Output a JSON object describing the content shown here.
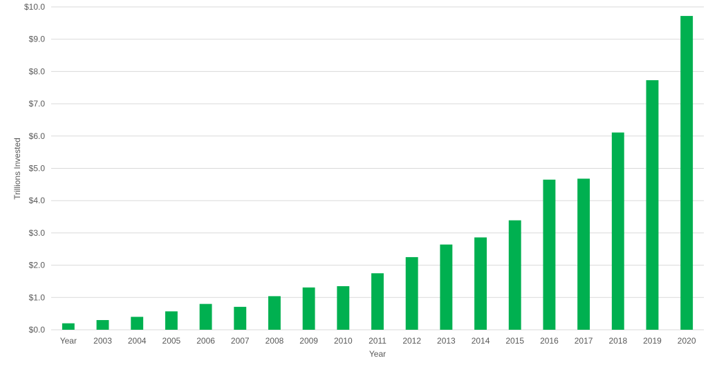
{
  "chart_data": {
    "type": "bar",
    "title": "",
    "xlabel": "Year",
    "ylabel": "Trillions Invested",
    "categories": [
      "Year",
      "2003",
      "2004",
      "2005",
      "2006",
      "2007",
      "2008",
      "2009",
      "2010",
      "2011",
      "2012",
      "2013",
      "2014",
      "2015",
      "2016",
      "2017",
      "2018",
      "2019",
      "2020"
    ],
    "values": [
      0.2,
      0.3,
      0.4,
      0.57,
      0.8,
      0.71,
      1.04,
      1.31,
      1.35,
      1.75,
      2.25,
      2.64,
      2.86,
      3.39,
      4.65,
      4.68,
      6.11,
      7.73,
      9.72
    ],
    "ylim": [
      0,
      10
    ],
    "yticks": [
      0,
      1,
      2,
      3,
      4,
      5,
      6,
      7,
      8,
      9,
      10
    ],
    "ytick_labels": [
      "$0.0",
      "$1.0",
      "$2.0",
      "$3.0",
      "$4.0",
      "$5.0",
      "$6.0",
      "$7.0",
      "$8.0",
      "$9.0",
      "$10.0"
    ],
    "grid": true,
    "legend": "none",
    "bar_color": "#00B050",
    "grid_color": "#D9D9D9"
  }
}
